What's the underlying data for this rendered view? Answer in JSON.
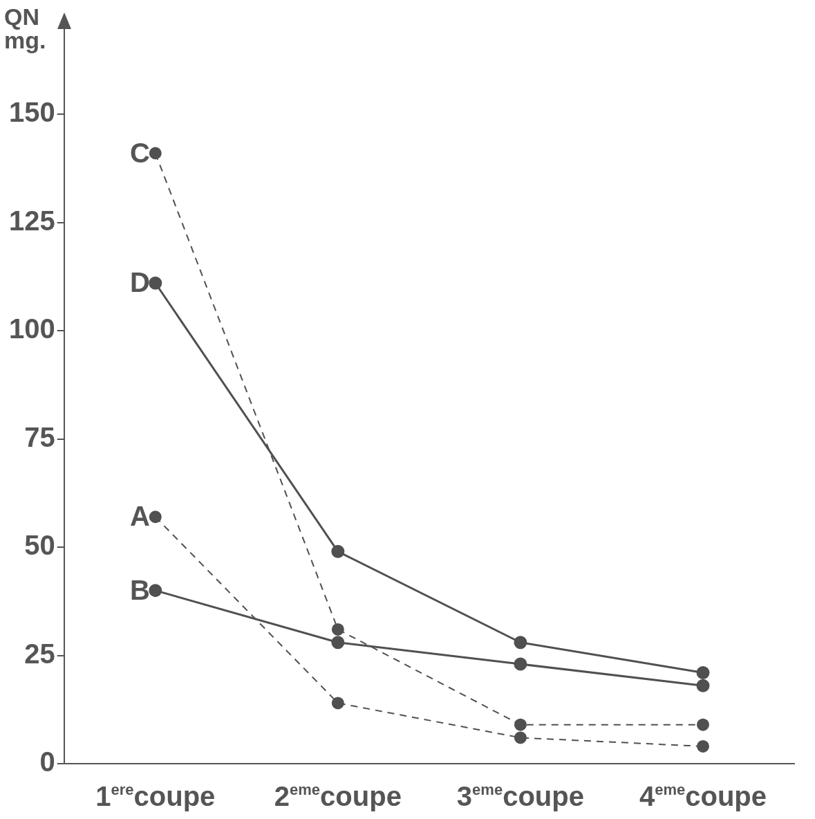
{
  "chart_data": {
    "type": "line",
    "ylabel": "QN\nmg.",
    "categories": [
      "1$^{ere}$coupe",
      "2$^{eme}$coupe",
      "3$^{eme}$coupe",
      "4$^{eme}$coupe"
    ],
    "series": [
      {
        "name": "C",
        "color": "#505050",
        "line_style": "dashed",
        "values": [
          141,
          31,
          9,
          9
        ]
      },
      {
        "name": "D",
        "color": "#505050",
        "line_style": "solid",
        "values": [
          111,
          49,
          28,
          21
        ]
      },
      {
        "name": "A",
        "color": "#505050",
        "line_style": "dashed",
        "values": [
          57,
          14,
          6,
          4
        ]
      },
      {
        "name": "B",
        "color": "#505050",
        "line_style": "solid",
        "values": [
          40,
          28,
          23,
          18
        ]
      }
    ],
    "ylim": [
      0,
      170
    ],
    "yticks": [
      0,
      25,
      50,
      75,
      100,
      125,
      150
    ],
    "grid": false,
    "legend": false,
    "marker": "circle"
  }
}
